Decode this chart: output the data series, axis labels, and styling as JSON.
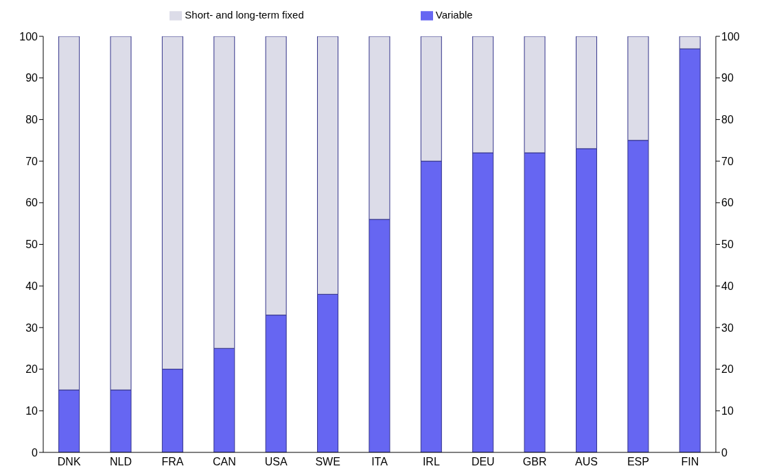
{
  "chart_data": {
    "type": "bar",
    "stacked": true,
    "categories": [
      "DNK",
      "NLD",
      "FRA",
      "CAN",
      "USA",
      "SWE",
      "ITA",
      "IRL",
      "DEU",
      "GBR",
      "AUS",
      "ESP",
      "FIN"
    ],
    "series": [
      {
        "name": "Variable",
        "color": "#6666f2",
        "values": [
          15,
          15,
          20,
          25,
          33,
          38,
          56,
          70,
          72,
          72,
          73,
          75,
          97
        ]
      },
      {
        "name": "Short- and long-term fixed",
        "color": "#dcdce8",
        "values": [
          85,
          85,
          80,
          75,
          67,
          62,
          44,
          30,
          28,
          28,
          27,
          25,
          3
        ]
      }
    ],
    "ylim": [
      0,
      100
    ],
    "yticks": [
      0,
      10,
      20,
      30,
      40,
      50,
      60,
      70,
      80,
      90,
      100
    ],
    "y2lim": [
      0,
      100
    ],
    "y2ticks": [
      0,
      10,
      20,
      30,
      40,
      50,
      60,
      70,
      80,
      90,
      100
    ],
    "grid": false,
    "legend": "top"
  }
}
